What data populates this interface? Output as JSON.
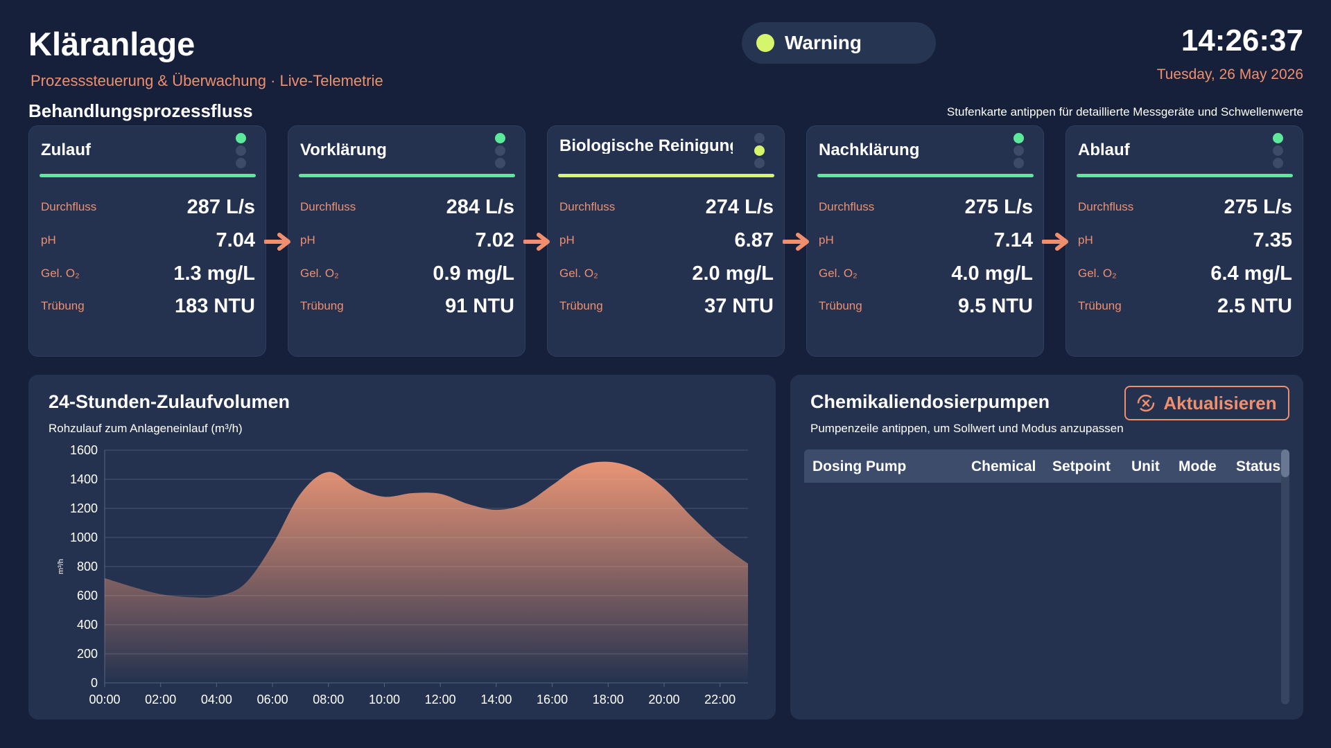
{
  "header": {
    "title": "Kläranlage",
    "subtitle": "Prozesssteuerung & Überwachung · Live-Telemetrie",
    "status": "Warning",
    "time": "14:26:37",
    "date": "Tuesday, 26 May 2026"
  },
  "process": {
    "title": "Behandlungsprozessfluss",
    "hint": "Stufenkarte antippen für detaillierte Messgeräte und Schwellenwerte",
    "metric_labels": {
      "flow": "Durchfluss",
      "ph": "pH",
      "o2": "Gel. O₂",
      "turbidity": "Trübung"
    },
    "stages": [
      {
        "name": "Zulauf",
        "status": "ok",
        "flow": "287 L/s",
        "ph": "7.04",
        "o2": "1.3 mg/L",
        "turbidity": "183 NTU"
      },
      {
        "name": "Vorklärung",
        "status": "ok",
        "flow": "284 L/s",
        "ph": "7.02",
        "o2": "0.9 mg/L",
        "turbidity": "91 NTU"
      },
      {
        "name": "Biologische Reinigung",
        "status": "warning",
        "flow": "274 L/s",
        "ph": "6.87",
        "o2": "2.0 mg/L",
        "turbidity": "37 NTU"
      },
      {
        "name": "Nachklärung",
        "status": "ok",
        "flow": "275 L/s",
        "ph": "7.14",
        "o2": "4.0 mg/L",
        "turbidity": "9.5 NTU"
      },
      {
        "name": "Ablauf",
        "status": "ok",
        "flow": "275 L/s",
        "ph": "7.35",
        "o2": "6.4 mg/L",
        "turbidity": "2.5 NTU"
      }
    ]
  },
  "colors": {
    "ok": "#5ee89c",
    "warning": "#d4f56c",
    "accent": "#f08f6e",
    "area_top": "#f49a77"
  },
  "chart_panel": {
    "title": "24-Stunden-Zulaufvolumen",
    "subtitle": "Rohzulauf zum Anlageneinlauf (m³/h)"
  },
  "chart_data": {
    "type": "area",
    "title": "24-Stunden-Zulaufvolumen",
    "subtitle": "Rohzulauf zum Anlageneinlauf (m³/h)",
    "ylabel": "m³/h",
    "xlabel": "",
    "x_ticks": [
      "00:00",
      "02:00",
      "04:00",
      "06:00",
      "08:00",
      "10:00",
      "12:00",
      "14:00",
      "16:00",
      "18:00",
      "20:00",
      "22:00"
    ],
    "y_ticks": [
      0,
      200,
      400,
      600,
      800,
      1000,
      1200,
      1400,
      1600
    ],
    "ylim": [
      0,
      1600
    ],
    "xlim": [
      0,
      23
    ],
    "grid": true,
    "x": [
      0,
      1,
      2,
      3,
      4,
      5,
      6,
      7,
      8,
      9,
      10,
      11,
      12,
      13,
      14,
      15,
      16,
      17,
      18,
      19,
      20,
      21,
      22,
      23
    ],
    "values": [
      720,
      660,
      610,
      590,
      595,
      680,
      950,
      1300,
      1450,
      1340,
      1280,
      1305,
      1300,
      1230,
      1190,
      1230,
      1360,
      1490,
      1520,
      1470,
      1340,
      1140,
      960,
      820
    ]
  },
  "pumps": {
    "title": "Chemikaliendosierpumpen",
    "subtitle": "Pumpenzeile antippen, um Sollwert und Modus anzupassen",
    "refresh_label": "Aktualisieren",
    "columns": [
      "Dosing Pump",
      "Chemical",
      "Setpoint",
      "Unit",
      "Mode",
      "Status"
    ]
  }
}
